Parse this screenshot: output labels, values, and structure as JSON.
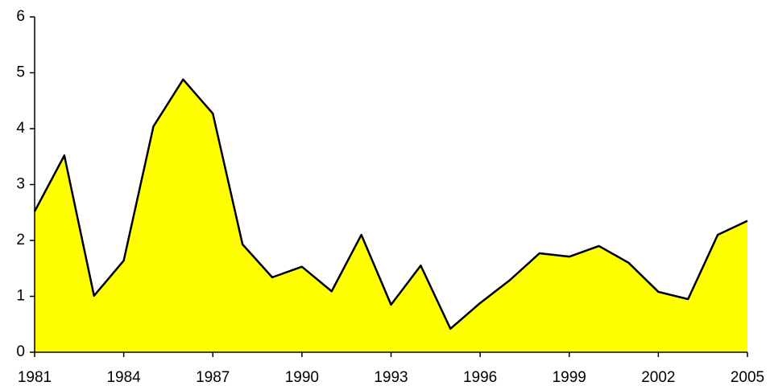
{
  "chart_data": {
    "type": "area",
    "x": [
      1981,
      1982,
      1983,
      1984,
      1985,
      1986,
      1987,
      1988,
      1989,
      1990,
      1991,
      1992,
      1993,
      1994,
      1995,
      1996,
      1997,
      1998,
      1999,
      2000,
      2001,
      2002,
      2003,
      2004,
      2005
    ],
    "values": [
      2.52,
      3.52,
      1.01,
      1.64,
      4.04,
      4.88,
      4.27,
      1.93,
      1.34,
      1.53,
      1.09,
      2.1,
      0.85,
      1.55,
      0.42,
      0.88,
      1.29,
      1.77,
      1.71,
      1.9,
      1.6,
      1.08,
      0.95,
      2.1,
      2.35
    ],
    "color": "#ffff00",
    "line_color": "#000000",
    "xlim": [
      1981,
      2005
    ],
    "xticks": [
      1981,
      1984,
      1987,
      1990,
      1993,
      1996,
      1999,
      2002,
      2005
    ],
    "ylim": [
      0,
      6
    ],
    "yticks": [
      0,
      1,
      2,
      3,
      4,
      5,
      6
    ],
    "grid": false
  }
}
